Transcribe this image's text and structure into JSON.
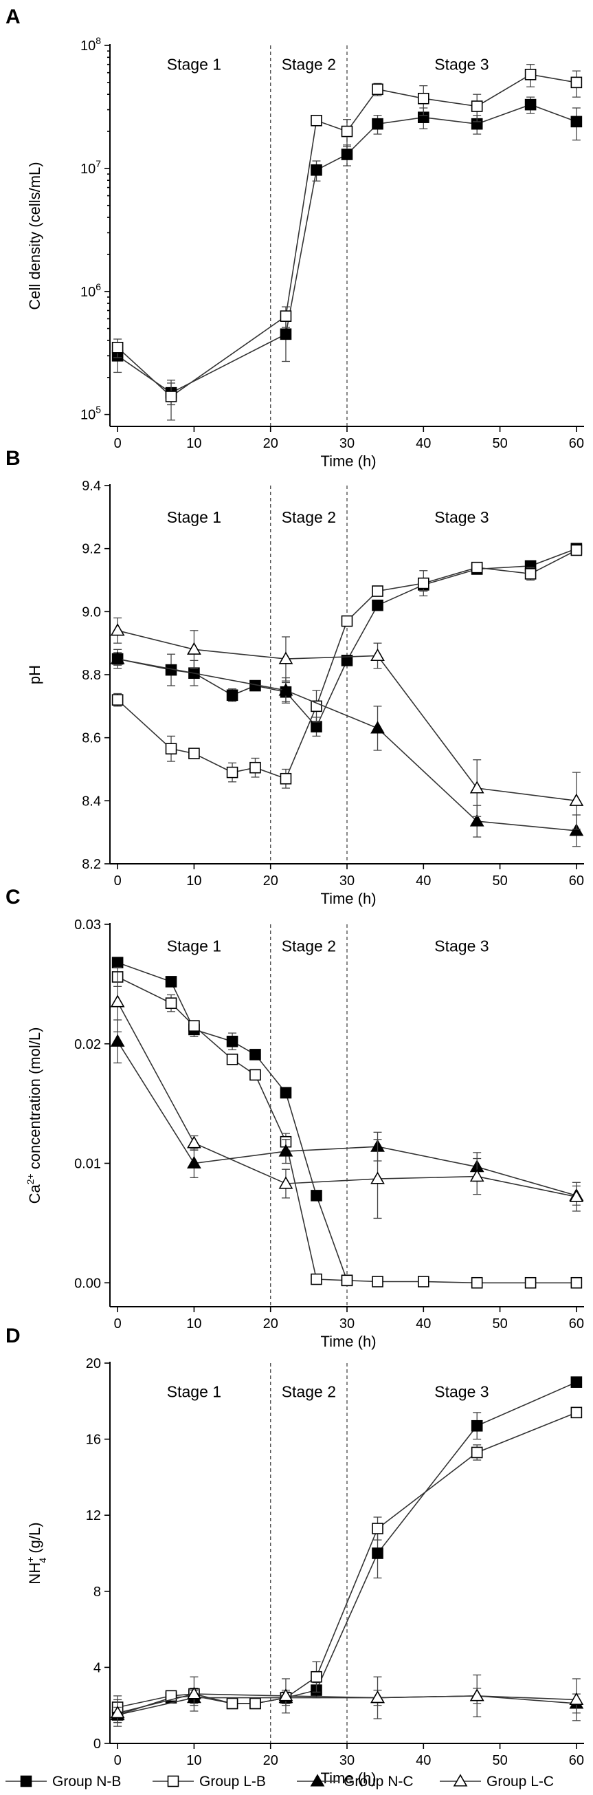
{
  "chart_data": [
    {
      "panel": "A",
      "type": "line",
      "scale": "log",
      "ylabel": "Cell density (cells/mL)",
      "xlabel": "Time (h)",
      "ylim": [
        80000,
        100000000
      ],
      "xlim": [
        -1,
        61
      ],
      "yticks": [
        {
          "v": 100000,
          "base": "10",
          "exp": "5"
        },
        {
          "v": 1000000,
          "base": "10",
          "exp": "6"
        },
        {
          "v": 10000000,
          "base": "10",
          "exp": "7"
        },
        {
          "v": 100000000,
          "base": "10",
          "exp": "8"
        }
      ],
      "xticks": [
        {
          "v": 0,
          "label": "0"
        },
        {
          "v": 10,
          "label": "10"
        },
        {
          "v": 20,
          "label": "20"
        },
        {
          "v": 30,
          "label": "30"
        },
        {
          "v": 40,
          "label": "40"
        },
        {
          "v": 50,
          "label": "50"
        },
        {
          "v": 60,
          "label": "60"
        }
      ],
      "stage_dividers": [
        20,
        30
      ],
      "stages": [
        {
          "label": "Stage 1",
          "x": 10,
          "y": 70000000
        },
        {
          "label": "Stage 2",
          "x": 25,
          "y": 70000000
        },
        {
          "label": "Stage 3",
          "x": 45,
          "y": 70000000
        }
      ],
      "series": [
        {
          "name": "Group N-B",
          "marker": "square-filled",
          "x": [
            0,
            7,
            22,
            26,
            30,
            34,
            40,
            47,
            54,
            60
          ],
          "y": [
            300000,
            150000,
            450000,
            9700000,
            13000000,
            23000000,
            26000000,
            23000000,
            33000000,
            24000000
          ],
          "err": [
            80000,
            30000,
            180000,
            1800000,
            2500000,
            4000000,
            5000000,
            4000000,
            5000000,
            7000000
          ]
        },
        {
          "name": "Group L-B",
          "marker": "square-open",
          "x": [
            0,
            7,
            22,
            26,
            30,
            34,
            40,
            47,
            54,
            60
          ],
          "y": [
            350000,
            140000,
            630000,
            24500000,
            20000000,
            44000000,
            37000000,
            32000000,
            58000000,
            50000000
          ],
          "err": [
            60000,
            50000,
            120000,
            1500000,
            5000000,
            5000000,
            10000000,
            8000000,
            12000000,
            12000000
          ]
        }
      ]
    },
    {
      "panel": "B",
      "type": "line",
      "scale": "linear",
      "ylabel": "pH",
      "xlabel": "Time (h)",
      "ylim": [
        8.2,
        9.4
      ],
      "xlim": [
        -1,
        61
      ],
      "yticks": [
        {
          "v": 8.2,
          "label": "8.2"
        },
        {
          "v": 8.4,
          "label": "8.4"
        },
        {
          "v": 8.6,
          "label": "8.6"
        },
        {
          "v": 8.8,
          "label": "8.8"
        },
        {
          "v": 9.0,
          "label": "9.0"
        },
        {
          "v": 9.2,
          "label": "9.2"
        },
        {
          "v": 9.4,
          "label": "9.4"
        }
      ],
      "xticks": [
        {
          "v": 0,
          "label": "0"
        },
        {
          "v": 10,
          "label": "10"
        },
        {
          "v": 20,
          "label": "20"
        },
        {
          "v": 30,
          "label": "30"
        },
        {
          "v": 40,
          "label": "40"
        },
        {
          "v": 50,
          "label": "50"
        },
        {
          "v": 60,
          "label": "60"
        }
      ],
      "stage_dividers": [
        20,
        30
      ],
      "stages": [
        {
          "label": "Stage 1",
          "x": 10,
          "y": 9.3
        },
        {
          "label": "Stage 2",
          "x": 25,
          "y": 9.3
        },
        {
          "label": "Stage 3",
          "x": 45,
          "y": 9.3
        }
      ],
      "series": [
        {
          "name": "Group N-B",
          "marker": "square-filled",
          "x": [
            0,
            7,
            10,
            15,
            18,
            22,
            26,
            30,
            34,
            40,
            47,
            54,
            60
          ],
          "y": [
            8.85,
            8.815,
            8.805,
            8.735,
            8.765,
            8.745,
            8.635,
            8.845,
            9.02,
            9.085,
            9.135,
            9.145,
            9.2
          ],
          "err": [
            0.03,
            0.05,
            0.04,
            0.02,
            0.01,
            0.03,
            0.03,
            0.0,
            0.0,
            0.02,
            0.01,
            0.01,
            0.01
          ]
        },
        {
          "name": "Group L-B",
          "marker": "square-open",
          "x": [
            0,
            7,
            10,
            15,
            18,
            22,
            26,
            30,
            34,
            40,
            47,
            54,
            60
          ],
          "y": [
            8.72,
            8.565,
            8.55,
            8.49,
            8.505,
            8.47,
            8.7,
            8.97,
            9.065,
            9.09,
            9.14,
            9.12,
            9.195
          ],
          "err": [
            0.02,
            0.04,
            0.01,
            0.03,
            0.03,
            0.03,
            0.05,
            0.0,
            0.01,
            0.04,
            0.01,
            0.02,
            0.01
          ]
        },
        {
          "name": "Group N-C",
          "marker": "triangle-filled",
          "x": [
            0,
            22,
            34,
            47,
            60
          ],
          "y": [
            8.85,
            8.75,
            8.63,
            8.335,
            8.305
          ],
          "err": [
            0.02,
            0.04,
            0.07,
            0.05,
            0.05
          ]
        },
        {
          "name": "Group L-C",
          "marker": "triangle-open",
          "x": [
            0,
            10,
            22,
            34,
            47,
            60
          ],
          "y": [
            8.94,
            8.88,
            8.85,
            8.86,
            8.44,
            8.4
          ],
          "err": [
            0.04,
            0.06,
            0.07,
            0.04,
            0.09,
            0.09
          ]
        }
      ]
    },
    {
      "panel": "C",
      "type": "line",
      "scale": "linear",
      "ylabel_main": "Ca",
      "ylabel_sup": "2+",
      "ylabel_rest": " concentration (mol/L)",
      "xlabel": "Time (h)",
      "ylim": [
        -0.002,
        0.03
      ],
      "xlim": [
        -1,
        61
      ],
      "yticks": [
        {
          "v": 0.0,
          "label": "0.00"
        },
        {
          "v": 0.01,
          "label": "0.01"
        },
        {
          "v": 0.02,
          "label": "0.02"
        },
        {
          "v": 0.03,
          "label": "0.03"
        }
      ],
      "xticks": [
        {
          "v": 0,
          "label": "0"
        },
        {
          "v": 10,
          "label": "10"
        },
        {
          "v": 20,
          "label": "20"
        },
        {
          "v": 30,
          "label": "30"
        },
        {
          "v": 40,
          "label": "40"
        },
        {
          "v": 50,
          "label": "50"
        },
        {
          "v": 60,
          "label": "60"
        }
      ],
      "stage_dividers": [
        20,
        30
      ],
      "stages": [
        {
          "label": "Stage 1",
          "x": 10,
          "y": 0.0282
        },
        {
          "label": "Stage 2",
          "x": 25,
          "y": 0.0282
        },
        {
          "label": "Stage 3",
          "x": 45,
          "y": 0.0282
        }
      ],
      "series": [
        {
          "name": "Group N-B",
          "marker": "square-filled",
          "x": [
            0,
            7,
            10,
            15,
            18,
            22,
            26,
            30
          ],
          "y": [
            0.0268,
            0.0252,
            0.0212,
            0.0202,
            0.0191,
            0.0159,
            0.0073,
            0.0002
          ],
          "err": [
            0.0002,
            0.0002,
            0.0006,
            0.0007,
            0.0002,
            0.0002,
            0.0001,
            0.0001
          ]
        },
        {
          "name": "Group L-B",
          "marker": "square-open",
          "x": [
            0,
            7,
            10,
            15,
            18,
            22,
            26,
            30,
            34,
            40,
            47,
            54,
            60
          ],
          "y": [
            0.0256,
            0.0234,
            0.0215,
            0.0187,
            0.0174,
            0.0118,
            0.0003,
            0.0002,
            0.0001,
            0.0001,
            0.0,
            0.0,
            0.0
          ],
          "err": [
            0.0008,
            0.0007,
            0.0004,
            0.0002,
            0.0001,
            0.0007,
            0.0002,
            0.0001,
            0.0,
            0.0,
            0.0,
            0.0,
            0.0
          ]
        },
        {
          "name": "Group N-C",
          "marker": "triangle-filled",
          "x": [
            0,
            10,
            22,
            34,
            47,
            60
          ],
          "y": [
            0.0202,
            0.01,
            0.011,
            0.0114,
            0.0097,
            0.0073
          ],
          "err": [
            0.0018,
            0.0012,
            0.001,
            0.0012,
            0.0012,
            0.0008
          ]
        },
        {
          "name": "Group L-C",
          "marker": "triangle-open",
          "x": [
            0,
            10,
            22,
            34,
            47,
            60
          ],
          "y": [
            0.0235,
            0.0117,
            0.0083,
            0.0087,
            0.0089,
            0.0072
          ],
          "err": [
            0.0025,
            0.0006,
            0.0012,
            0.0033,
            0.0015,
            0.0012
          ]
        }
      ]
    },
    {
      "panel": "D",
      "type": "line",
      "scale": "linear",
      "ylabel_main": "NH",
      "ylabel_sup": "+",
      "ylabel_sub": "4",
      "ylabel_rest": " (g/L)",
      "xlabel": "Time (h)",
      "ylim": [
        0,
        20
      ],
      "xlim": [
        -1,
        61
      ],
      "yticks": [
        {
          "v": 0,
          "label": "0"
        },
        {
          "v": 4,
          "label": "4"
        },
        {
          "v": 8,
          "label": "8"
        },
        {
          "v": 12,
          "label": "12"
        },
        {
          "v": 16,
          "label": "16"
        },
        {
          "v": 20,
          "label": "20"
        }
      ],
      "xticks": [
        {
          "v": 0,
          "label": "0"
        },
        {
          "v": 10,
          "label": "10"
        },
        {
          "v": 20,
          "label": "20"
        },
        {
          "v": 30,
          "label": "30"
        },
        {
          "v": 40,
          "label": "40"
        },
        {
          "v": 50,
          "label": "50"
        },
        {
          "v": 60,
          "label": "60"
        }
      ],
      "stage_dividers": [
        20,
        30
      ],
      "stages": [
        {
          "label": "Stage 1",
          "x": 10,
          "y": 18.5
        },
        {
          "label": "Stage 2",
          "x": 25,
          "y": 18.5
        },
        {
          "label": "Stage 3",
          "x": 45,
          "y": 18.5
        }
      ],
      "series": [
        {
          "name": "Group N-B",
          "marker": "square-filled",
          "x": [
            0,
            7,
            10,
            15,
            18,
            22,
            26,
            34,
            47,
            60
          ],
          "y": [
            1.5,
            2.4,
            2.5,
            2.1,
            2.1,
            2.4,
            2.8,
            10.0,
            16.7,
            19.0
          ],
          "err": [
            0.4,
            0.2,
            0.4,
            0.2,
            0.2,
            0.3,
            0.4,
            1.3,
            0.7,
            0.1
          ]
        },
        {
          "name": "Group L-B",
          "marker": "square-open",
          "x": [
            0,
            7,
            10,
            15,
            18,
            22,
            26,
            34,
            47,
            60
          ],
          "y": [
            1.9,
            2.5,
            2.6,
            2.1,
            2.1,
            2.4,
            3.5,
            11.3,
            15.3,
            17.4
          ],
          "err": [
            0.6,
            0.2,
            0.3,
            0.2,
            0.2,
            0.3,
            0.8,
            0.6,
            0.4,
            0.1
          ]
        },
        {
          "name": "Group N-C",
          "marker": "triangle-filled",
          "x": [
            0,
            10,
            22,
            34,
            47,
            60
          ],
          "y": [
            1.5,
            2.4,
            2.4,
            2.4,
            2.5,
            2.1
          ],
          "err": [
            0.4,
            0.4,
            0.4,
            0.4,
            0.4,
            0.5
          ]
        },
        {
          "name": "Group L-C",
          "marker": "triangle-open",
          "x": [
            0,
            10,
            22,
            34,
            47,
            60
          ],
          "y": [
            1.6,
            2.6,
            2.5,
            2.4,
            2.5,
            2.3
          ],
          "err": [
            0.7,
            0.9,
            0.9,
            1.1,
            1.1,
            1.1
          ]
        }
      ]
    }
  ],
  "legend": [
    {
      "name": "Group N-B",
      "marker": "square-filled"
    },
    {
      "name": "Group L-B",
      "marker": "square-open"
    },
    {
      "name": "Group N-C",
      "marker": "triangle-filled"
    },
    {
      "name": "Group L-C",
      "marker": "triangle-open"
    }
  ]
}
